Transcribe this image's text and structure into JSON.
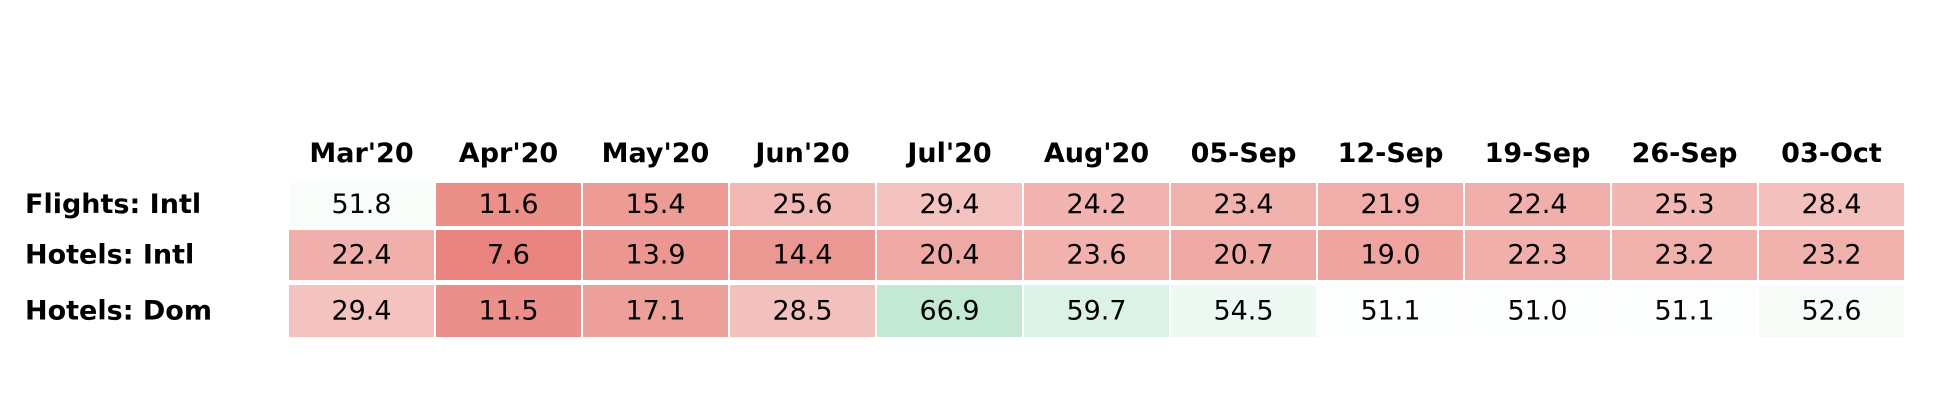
{
  "chart_data": {
    "type": "heatmap",
    "title": "",
    "xlabel": "",
    "ylabel": "",
    "columns": [
      "Mar'20",
      "Apr'20",
      "May'20",
      "Jun'20",
      "Jul'20",
      "Aug'20",
      "05-Sep",
      "12-Sep",
      "19-Sep",
      "26-Sep",
      "03-Oct"
    ],
    "rows": [
      "Flights: Intl",
      "Hotels: Intl",
      "Hotels: Dom"
    ],
    "values": [
      [
        51.8,
        11.6,
        15.4,
        25.6,
        29.4,
        24.2,
        23.4,
        21.9,
        22.4,
        25.3,
        28.4
      ],
      [
        22.4,
        7.6,
        13.9,
        14.4,
        20.4,
        23.6,
        20.7,
        19.0,
        22.3,
        23.2,
        23.2
      ],
      [
        29.4,
        11.5,
        17.1,
        28.5,
        66.9,
        59.7,
        54.5,
        51.1,
        51.0,
        51.1,
        52.6
      ]
    ],
    "value_labels": [
      [
        "51.8",
        "11.6",
        "15.4",
        "25.6",
        "29.4",
        "24.2",
        "23.4",
        "21.9",
        "22.4",
        "25.3",
        "28.4"
      ],
      [
        "22.4",
        "7.6",
        "13.9",
        "14.4",
        "20.4",
        "23.6",
        "20.7",
        "19.0",
        "22.3",
        "23.2",
        "23.2"
      ],
      [
        "29.4",
        "11.5",
        "17.1",
        "28.5",
        "66.9",
        "59.7",
        "54.5",
        "51.1",
        "51.0",
        "51.1",
        "52.6"
      ]
    ],
    "color_scale": {
      "midpoint": 50,
      "low_color": "#e8847d",
      "mid_color": "#ffffff",
      "high_color": "#c3e8d3"
    },
    "grid": false,
    "legend": "none"
  }
}
